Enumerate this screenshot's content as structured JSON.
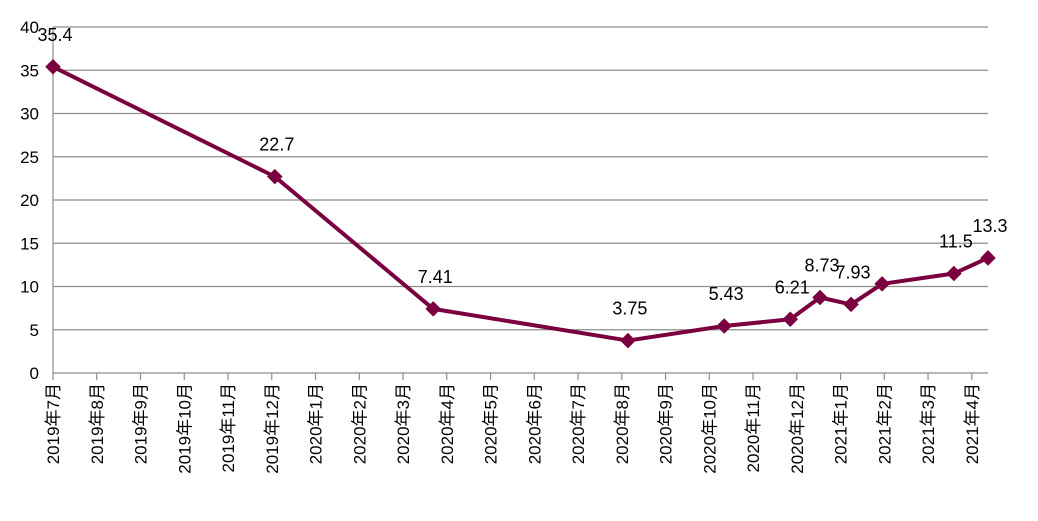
{
  "chart_data": {
    "type": "line",
    "x": [
      0,
      5.07,
      8.69,
      13.14,
      15.34,
      16.85,
      17.53,
      18.24,
      18.95,
      20.59,
      21.37
    ],
    "series": [
      {
        "color": "#7a0040",
        "values": [
          35.4,
          22.7,
          7.41,
          3.75,
          5.43,
          6.21,
          8.73,
          7.93,
          10.3,
          11.5,
          13.3
        ],
        "value_labels": [
          "35.4",
          "22.7",
          "7.41",
          "3.75",
          "5.43",
          "6.21",
          "8.73",
          "7.93",
          null,
          "11.5",
          "13.3"
        ]
      }
    ],
    "xlim": [
      0,
      21.37
    ],
    "xticks": [
      {
        "value": 0,
        "label": "2019年7月"
      },
      {
        "value": 1,
        "label": "2019年8月"
      },
      {
        "value": 2,
        "label": "2019年9月"
      },
      {
        "value": 3,
        "label": "2019年10月"
      },
      {
        "value": 4,
        "label": "2019年11月"
      },
      {
        "value": 5,
        "label": "2019年12月"
      },
      {
        "value": 6,
        "label": "2020年1月"
      },
      {
        "value": 7,
        "label": "2020年2月"
      },
      {
        "value": 8,
        "label": "2020年3月"
      },
      {
        "value": 9,
        "label": "2020年4月"
      },
      {
        "value": 10,
        "label": "2020年5月"
      },
      {
        "value": 11,
        "label": "2020年6月"
      },
      {
        "value": 12,
        "label": "2020年7月"
      },
      {
        "value": 13,
        "label": "2020年8月"
      },
      {
        "value": 14,
        "label": "2020年9月"
      },
      {
        "value": 15,
        "label": "2020年10月"
      },
      {
        "value": 16,
        "label": "2020年11月"
      },
      {
        "value": 17,
        "label": "2020年12月"
      },
      {
        "value": 18,
        "label": "2021年1月"
      },
      {
        "value": 19,
        "label": "2021年2月"
      },
      {
        "value": 20,
        "label": "2021年3月"
      },
      {
        "value": 21,
        "label": "2021年4月"
      }
    ],
    "ylim": [
      0,
      40
    ],
    "yticks": [
      0,
      5,
      10,
      15,
      20,
      25,
      30,
      35,
      40
    ],
    "grid": true
  }
}
